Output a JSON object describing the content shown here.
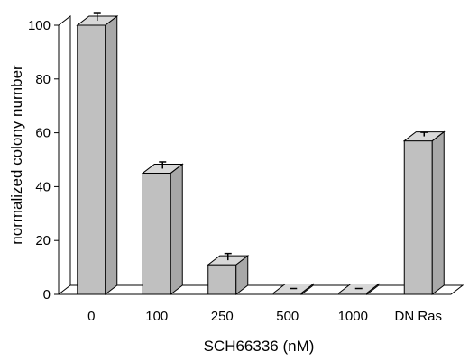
{
  "chart_data": {
    "type": "bar",
    "style": "3d",
    "title": "",
    "xlabel": "SCH66336 (nM)",
    "ylabel": "normalized colony number",
    "categories": [
      "0",
      "100",
      "250",
      "500",
      "1000",
      "DN Ras"
    ],
    "values": [
      100,
      45,
      11,
      0.5,
      0.5,
      57
    ],
    "errors": [
      3,
      2.5,
      2.5,
      0,
      0,
      1.5
    ],
    "ylim": [
      0,
      100
    ],
    "yticks": [
      "0",
      "20",
      "40",
      "60",
      "80",
      "100"
    ],
    "grid": false,
    "legend": "none",
    "colors": {
      "bar_front": "#c0c0c0",
      "bar_top": "#d8d8d8",
      "bar_side": "#a8a8a8",
      "line": "#000000"
    }
  }
}
